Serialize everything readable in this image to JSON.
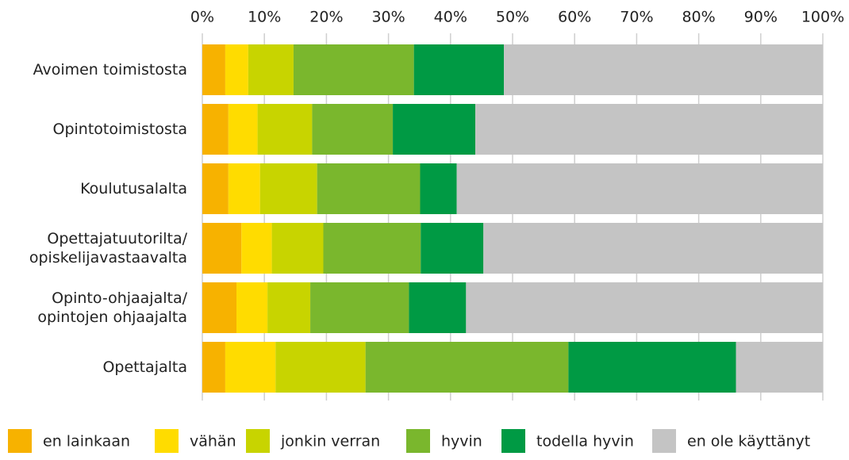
{
  "chart_data": {
    "type": "stacked_bar_horizontal",
    "categories": [
      "Avoimen toimistosta",
      "Opintotoimistosta",
      "Koulutusalalta",
      "Opettajatuutorilta/\nopiskelijavastaavalta",
      "Opinto-ohjaajalta/\nopintojen ohjaajalta",
      "Opettajalta"
    ],
    "series": [
      {
        "name": "en lainkaan",
        "color": "#f7b200",
        "values": [
          3.7,
          4.2,
          4.2,
          6.3,
          5.5,
          3.7
        ]
      },
      {
        "name": "vähän",
        "color": "#ffdc00",
        "values": [
          3.7,
          4.7,
          5.1,
          4.9,
          5.0,
          8.1
        ]
      },
      {
        "name": "jonkin verran",
        "color": "#c8d400",
        "values": [
          7.3,
          8.8,
          9.2,
          8.3,
          6.9,
          14.5
        ]
      },
      {
        "name": "hyvin",
        "color": "#7ab72d",
        "values": [
          19.4,
          13.0,
          16.6,
          15.7,
          15.9,
          32.7
        ]
      },
      {
        "name": "todella hyvin",
        "color": "#009a44",
        "values": [
          14.5,
          13.3,
          5.9,
          10.1,
          9.2,
          27.0
        ]
      },
      {
        "name": "en ole käyttänyt",
        "color": "#c4c4c4",
        "values": [
          51.4,
          56.0,
          59.0,
          54.7,
          57.5,
          14.0
        ]
      }
    ],
    "xlim": [
      0,
      100
    ],
    "xticks": [
      {
        "value": 0,
        "label": "0%"
      },
      {
        "value": 10,
        "label": "10%"
      },
      {
        "value": 20,
        "label": "20%"
      },
      {
        "value": 30,
        "label": "30%"
      },
      {
        "value": 40,
        "label": "40%"
      },
      {
        "value": 50,
        "label": "50%"
      },
      {
        "value": 60,
        "label": "60%"
      },
      {
        "value": 70,
        "label": "70%"
      },
      {
        "value": 80,
        "label": "80%"
      },
      {
        "value": 90,
        "label": "90%"
      },
      {
        "value": 100,
        "label": "100%"
      }
    ],
    "grid": true,
    "legend": "bottom"
  }
}
